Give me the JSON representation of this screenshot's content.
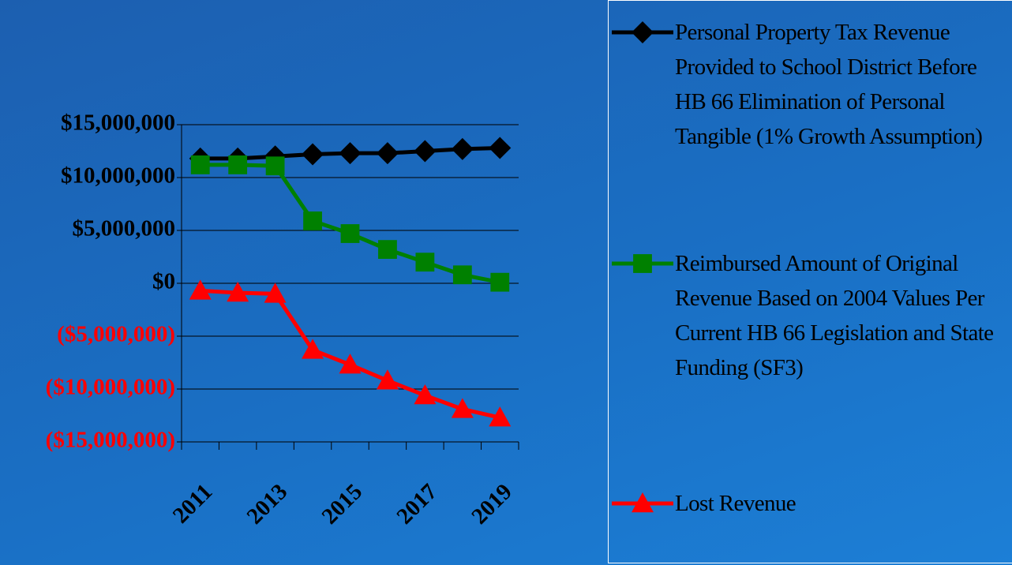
{
  "chart_data": {
    "type": "line",
    "categories": [
      "2011",
      null,
      "2013",
      null,
      "2015",
      null,
      "2017",
      null,
      "2019"
    ],
    "series": [
      {
        "name": "Personal Property Tax Revenue Provided to School District Before HB 66 Elimination of Personal Tangible (1% Growth Assumption)",
        "color": "#000000",
        "marker": "diamond",
        "values": [
          11800000,
          11800000,
          12000000,
          12200000,
          12300000,
          12300000,
          12500000,
          12700000,
          12800000
        ]
      },
      {
        "name": "Reimbursed Amount of Original Revenue Based on 2004 Values Per Current HB 66 Legislation and State Funding (SF3)",
        "color": "#008000",
        "marker": "square",
        "values": [
          11200000,
          11200000,
          11100000,
          5900000,
          4700000,
          3200000,
          2000000,
          800000,
          100000
        ]
      },
      {
        "name": "Lost Revenue",
        "color": "#ff0000",
        "marker": "triangle",
        "values": [
          -700000,
          -900000,
          -1000000,
          -6300000,
          -7700000,
          -9200000,
          -10600000,
          -11900000,
          -12700000
        ]
      }
    ],
    "ylim": [
      -15000000,
      15000000
    ],
    "yticks": [
      {
        "value": -15000000,
        "label": "($15,000,000)"
      },
      {
        "value": -10000000,
        "label": "($10,000,000)"
      },
      {
        "value": -5000000,
        "label": "($5,000,000)"
      },
      {
        "value": 0,
        "label": "$0"
      },
      {
        "value": 5000000,
        "label": "$5,000,000"
      },
      {
        "value": 10000000,
        "label": "$10,000,000"
      },
      {
        "value": 15000000,
        "label": "$15,000,000"
      }
    ],
    "negative_tick_color": "#ff0000",
    "grid": true,
    "legend": "right"
  }
}
